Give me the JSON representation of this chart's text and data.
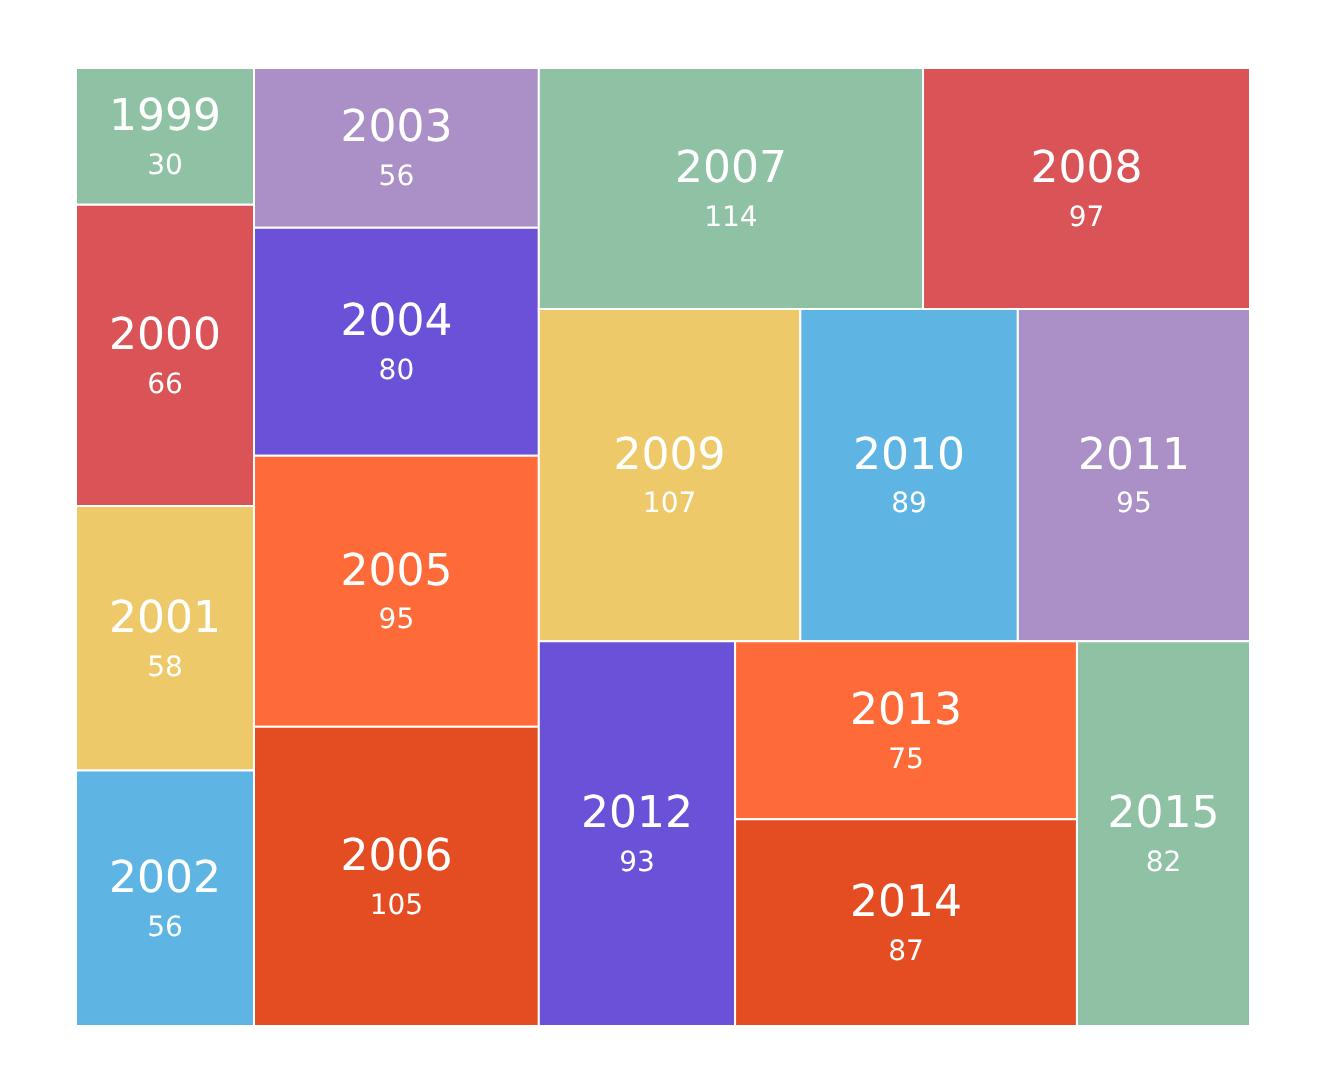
{
  "chart_data": {
    "type": "other",
    "categories": [
      "1999",
      "2000",
      "2001",
      "2002",
      "2003",
      "2004",
      "2005",
      "2006",
      "2007",
      "2008",
      "2009",
      "2010",
      "2011",
      "2012",
      "2013",
      "2014",
      "2015"
    ],
    "values": [
      30,
      66,
      58,
      56,
      56,
      80,
      95,
      105,
      114,
      97,
      107,
      89,
      95,
      93,
      75,
      87,
      82
    ],
    "colors": [
      "#8fc1a4",
      "#da5356",
      "#eec96a",
      "#5eb5e3",
      "#aa90c6",
      "#6b50d8",
      "#fe6a38",
      "#e44d22",
      "#8fc1a4",
      "#da5356",
      "#eec96a",
      "#5eb5e3",
      "#aa90c6",
      "#6b50d8",
      "#fe6a38",
      "#e44d22",
      "#8fc1a4"
    ],
    "data_labels": true
  }
}
